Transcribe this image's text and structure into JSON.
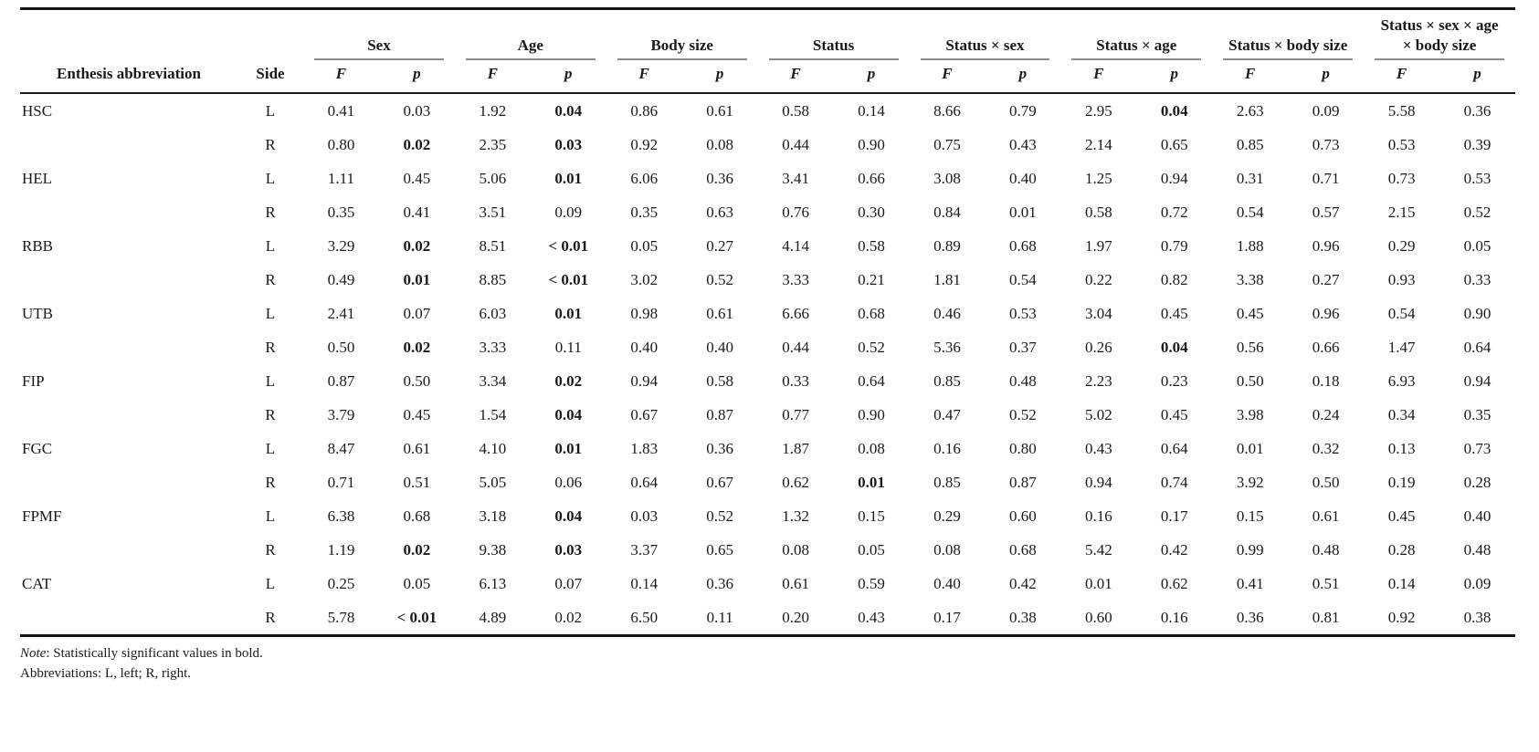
{
  "table": {
    "row_header": "Enthesis abbreviation",
    "side_header": "Side",
    "f_label": "F",
    "p_label": "p",
    "groups": [
      "Sex",
      "Age",
      "Body size",
      "Status",
      "Status × sex",
      "Status × age",
      "Status × body size",
      "Status × sex × age × body size"
    ],
    "rows": [
      {
        "enthesis": "HSC",
        "side": "L",
        "values": [
          {
            "f": "0.41",
            "p": "0.03",
            "p_bold": false
          },
          {
            "f": "1.92",
            "p": "0.04",
            "p_bold": true
          },
          {
            "f": "0.86",
            "p": "0.61",
            "p_bold": false
          },
          {
            "f": "0.58",
            "p": "0.14",
            "p_bold": false
          },
          {
            "f": "8.66",
            "p": "0.79",
            "p_bold": false
          },
          {
            "f": "2.95",
            "p": "0.04",
            "p_bold": true
          },
          {
            "f": "2.63",
            "p": "0.09",
            "p_bold": false
          },
          {
            "f": "5.58",
            "p": "0.36",
            "p_bold": false
          }
        ]
      },
      {
        "enthesis": "",
        "side": "R",
        "values": [
          {
            "f": "0.80",
            "p": "0.02",
            "p_bold": true
          },
          {
            "f": "2.35",
            "p": "0.03",
            "p_bold": true
          },
          {
            "f": "0.92",
            "p": "0.08",
            "p_bold": false
          },
          {
            "f": "0.44",
            "p": "0.90",
            "p_bold": false
          },
          {
            "f": "0.75",
            "p": "0.43",
            "p_bold": false
          },
          {
            "f": "2.14",
            "p": "0.65",
            "p_bold": false
          },
          {
            "f": "0.85",
            "p": "0.73",
            "p_bold": false
          },
          {
            "f": "0.53",
            "p": "0.39",
            "p_bold": false
          }
        ]
      },
      {
        "enthesis": "HEL",
        "side": "L",
        "values": [
          {
            "f": "1.11",
            "p": "0.45",
            "p_bold": false
          },
          {
            "f": "5.06",
            "p": "0.01",
            "p_bold": true
          },
          {
            "f": "6.06",
            "p": "0.36",
            "p_bold": false
          },
          {
            "f": "3.41",
            "p": "0.66",
            "p_bold": false
          },
          {
            "f": "3.08",
            "p": "0.40",
            "p_bold": false
          },
          {
            "f": "1.25",
            "p": "0.94",
            "p_bold": false
          },
          {
            "f": "0.31",
            "p": "0.71",
            "p_bold": false
          },
          {
            "f": "0.73",
            "p": "0.53",
            "p_bold": false
          }
        ]
      },
      {
        "enthesis": "",
        "side": "R",
        "values": [
          {
            "f": "0.35",
            "p": "0.41",
            "p_bold": false
          },
          {
            "f": "3.51",
            "p": "0.09",
            "p_bold": false
          },
          {
            "f": "0.35",
            "p": "0.63",
            "p_bold": false
          },
          {
            "f": "0.76",
            "p": "0.30",
            "p_bold": false
          },
          {
            "f": "0.84",
            "p": "0.01",
            "p_bold": false
          },
          {
            "f": "0.58",
            "p": "0.72",
            "p_bold": false
          },
          {
            "f": "0.54",
            "p": "0.57",
            "p_bold": false
          },
          {
            "f": "2.15",
            "p": "0.52",
            "p_bold": false
          }
        ]
      },
      {
        "enthesis": "RBB",
        "side": "L",
        "values": [
          {
            "f": "3.29",
            "p": "0.02",
            "p_bold": true
          },
          {
            "f": "8.51",
            "p": "< 0.01",
            "p_bold": true
          },
          {
            "f": "0.05",
            "p": "0.27",
            "p_bold": false
          },
          {
            "f": "4.14",
            "p": "0.58",
            "p_bold": false
          },
          {
            "f": "0.89",
            "p": "0.68",
            "p_bold": false
          },
          {
            "f": "1.97",
            "p": "0.79",
            "p_bold": false
          },
          {
            "f": "1.88",
            "p": "0.96",
            "p_bold": false
          },
          {
            "f": "0.29",
            "p": "0.05",
            "p_bold": false
          }
        ]
      },
      {
        "enthesis": "",
        "side": "R",
        "values": [
          {
            "f": "0.49",
            "p": "0.01",
            "p_bold": true
          },
          {
            "f": "8.85",
            "p": "< 0.01",
            "p_bold": true
          },
          {
            "f": "3.02",
            "p": "0.52",
            "p_bold": false
          },
          {
            "f": "3.33",
            "p": "0.21",
            "p_bold": false
          },
          {
            "f": "1.81",
            "p": "0.54",
            "p_bold": false
          },
          {
            "f": "0.22",
            "p": "0.82",
            "p_bold": false
          },
          {
            "f": "3.38",
            "p": "0.27",
            "p_bold": false
          },
          {
            "f": "0.93",
            "p": "0.33",
            "p_bold": false
          }
        ]
      },
      {
        "enthesis": "UTB",
        "side": "L",
        "values": [
          {
            "f": "2.41",
            "p": "0.07",
            "p_bold": false
          },
          {
            "f": "6.03",
            "p": "0.01",
            "p_bold": true
          },
          {
            "f": "0.98",
            "p": "0.61",
            "p_bold": false
          },
          {
            "f": "6.66",
            "p": "0.68",
            "p_bold": false
          },
          {
            "f": "0.46",
            "p": "0.53",
            "p_bold": false
          },
          {
            "f": "3.04",
            "p": "0.45",
            "p_bold": false
          },
          {
            "f": "0.45",
            "p": "0.96",
            "p_bold": false
          },
          {
            "f": "0.54",
            "p": "0.90",
            "p_bold": false
          }
        ]
      },
      {
        "enthesis": "",
        "side": "R",
        "values": [
          {
            "f": "0.50",
            "p": "0.02",
            "p_bold": true
          },
          {
            "f": "3.33",
            "p": "0.11",
            "p_bold": false
          },
          {
            "f": "0.40",
            "p": "0.40",
            "p_bold": false
          },
          {
            "f": "0.44",
            "p": "0.52",
            "p_bold": false
          },
          {
            "f": "5.36",
            "p": "0.37",
            "p_bold": false
          },
          {
            "f": "0.26",
            "p": "0.04",
            "p_bold": true
          },
          {
            "f": "0.56",
            "p": "0.66",
            "p_bold": false
          },
          {
            "f": "1.47",
            "p": "0.64",
            "p_bold": false
          }
        ]
      },
      {
        "enthesis": "FIP",
        "side": "L",
        "values": [
          {
            "f": "0.87",
            "p": "0.50",
            "p_bold": false
          },
          {
            "f": "3.34",
            "p": "0.02",
            "p_bold": true
          },
          {
            "f": "0.94",
            "p": "0.58",
            "p_bold": false
          },
          {
            "f": "0.33",
            "p": "0.64",
            "p_bold": false
          },
          {
            "f": "0.85",
            "p": "0.48",
            "p_bold": false
          },
          {
            "f": "2.23",
            "p": "0.23",
            "p_bold": false
          },
          {
            "f": "0.50",
            "p": "0.18",
            "p_bold": false
          },
          {
            "f": "6.93",
            "p": "0.94",
            "p_bold": false
          }
        ]
      },
      {
        "enthesis": "",
        "side": "R",
        "values": [
          {
            "f": "3.79",
            "p": "0.45",
            "p_bold": false
          },
          {
            "f": "1.54",
            "p": "0.04",
            "p_bold": true
          },
          {
            "f": "0.67",
            "p": "0.87",
            "p_bold": false
          },
          {
            "f": "0.77",
            "p": "0.90",
            "p_bold": false
          },
          {
            "f": "0.47",
            "p": "0.52",
            "p_bold": false
          },
          {
            "f": "5.02",
            "p": "0.45",
            "p_bold": false
          },
          {
            "f": "3.98",
            "p": "0.24",
            "p_bold": false
          },
          {
            "f": "0.34",
            "p": "0.35",
            "p_bold": false
          }
        ]
      },
      {
        "enthesis": "FGC",
        "side": "L",
        "values": [
          {
            "f": "8.47",
            "p": "0.61",
            "p_bold": false
          },
          {
            "f": "4.10",
            "p": "0.01",
            "p_bold": true
          },
          {
            "f": "1.83",
            "p": "0.36",
            "p_bold": false
          },
          {
            "f": "1.87",
            "p": "0.08",
            "p_bold": false
          },
          {
            "f": "0.16",
            "p": "0.80",
            "p_bold": false
          },
          {
            "f": "0.43",
            "p": "0.64",
            "p_bold": false
          },
          {
            "f": "0.01",
            "p": "0.32",
            "p_bold": false
          },
          {
            "f": "0.13",
            "p": "0.73",
            "p_bold": false
          }
        ]
      },
      {
        "enthesis": "",
        "side": "R",
        "values": [
          {
            "f": "0.71",
            "p": "0.51",
            "p_bold": false
          },
          {
            "f": "5.05",
            "p": "0.06",
            "p_bold": false
          },
          {
            "f": "0.64",
            "p": "0.67",
            "p_bold": false
          },
          {
            "f": "0.62",
            "p": "0.01",
            "p_bold": true
          },
          {
            "f": "0.85",
            "p": "0.87",
            "p_bold": false
          },
          {
            "f": "0.94",
            "p": "0.74",
            "p_bold": false
          },
          {
            "f": "3.92",
            "p": "0.50",
            "p_bold": false
          },
          {
            "f": "0.19",
            "p": "0.28",
            "p_bold": false
          }
        ]
      },
      {
        "enthesis": "FPMF",
        "side": "L",
        "values": [
          {
            "f": "6.38",
            "p": "0.68",
            "p_bold": false
          },
          {
            "f": "3.18",
            "p": "0.04",
            "p_bold": true
          },
          {
            "f": "0.03",
            "p": "0.52",
            "p_bold": false
          },
          {
            "f": "1.32",
            "p": "0.15",
            "p_bold": false
          },
          {
            "f": "0.29",
            "p": "0.60",
            "p_bold": false
          },
          {
            "f": "0.16",
            "p": "0.17",
            "p_bold": false
          },
          {
            "f": "0.15",
            "p": "0.61",
            "p_bold": false
          },
          {
            "f": "0.45",
            "p": "0.40",
            "p_bold": false
          }
        ]
      },
      {
        "enthesis": "",
        "side": "R",
        "values": [
          {
            "f": "1.19",
            "p": "0.02",
            "p_bold": true
          },
          {
            "f": "9.38",
            "p": "0.03",
            "p_bold": true
          },
          {
            "f": "3.37",
            "p": "0.65",
            "p_bold": false
          },
          {
            "f": "0.08",
            "p": "0.05",
            "p_bold": false
          },
          {
            "f": "0.08",
            "p": "0.68",
            "p_bold": false
          },
          {
            "f": "5.42",
            "p": "0.42",
            "p_bold": false
          },
          {
            "f": "0.99",
            "p": "0.48",
            "p_bold": false
          },
          {
            "f": "0.28",
            "p": "0.48",
            "p_bold": false
          }
        ]
      },
      {
        "enthesis": "CAT",
        "side": "L",
        "values": [
          {
            "f": "0.25",
            "p": "0.05",
            "p_bold": false
          },
          {
            "f": "6.13",
            "p": "0.07",
            "p_bold": false
          },
          {
            "f": "0.14",
            "p": "0.36",
            "p_bold": false
          },
          {
            "f": "0.61",
            "p": "0.59",
            "p_bold": false
          },
          {
            "f": "0.40",
            "p": "0.42",
            "p_bold": false
          },
          {
            "f": "0.01",
            "p": "0.62",
            "p_bold": false
          },
          {
            "f": "0.41",
            "p": "0.51",
            "p_bold": false
          },
          {
            "f": "0.14",
            "p": "0.09",
            "p_bold": false
          }
        ]
      },
      {
        "enthesis": "",
        "side": "R",
        "values": [
          {
            "f": "5.78",
            "p": "< 0.01",
            "p_bold": true
          },
          {
            "f": "4.89",
            "p": "0.02",
            "p_bold": false
          },
          {
            "f": "6.50",
            "p": "0.11",
            "p_bold": false
          },
          {
            "f": "0.20",
            "p": "0.43",
            "p_bold": false
          },
          {
            "f": "0.17",
            "p": "0.38",
            "p_bold": false
          },
          {
            "f": "0.60",
            "p": "0.16",
            "p_bold": false
          },
          {
            "f": "0.36",
            "p": "0.81",
            "p_bold": false
          },
          {
            "f": "0.92",
            "p": "0.38",
            "p_bold": false
          }
        ]
      }
    ]
  },
  "notes": {
    "note_label": "Note",
    "note_rest": ": Statistically significant values in bold.",
    "abbreviations": "Abbreviations: L, left; R, right."
  },
  "colors": {
    "text": "#1a1a1a",
    "rule_heavy": "#141414",
    "rule_group": "#8c8c8c"
  }
}
